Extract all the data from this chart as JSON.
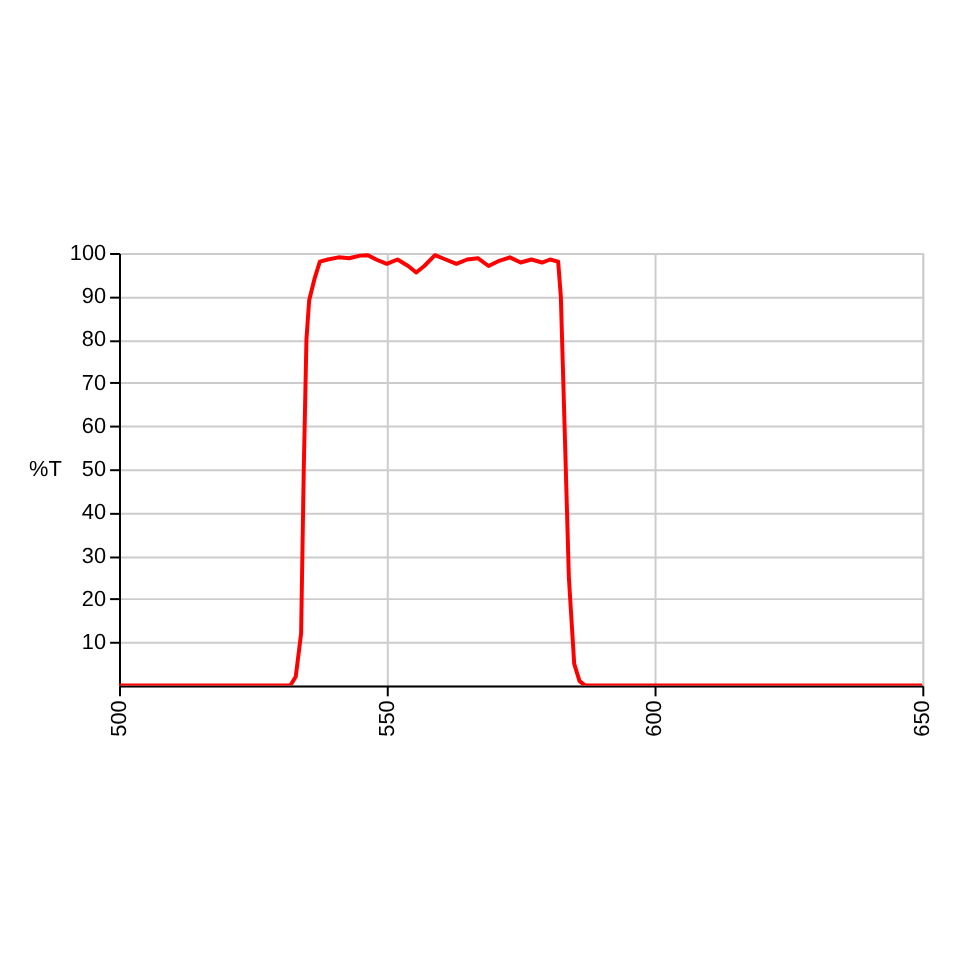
{
  "chart_data": {
    "type": "line",
    "ylabel": "%T",
    "x": [
      500,
      532,
      533,
      534,
      534.5,
      535,
      535.5,
      536.5,
      537.5,
      539,
      541,
      543,
      545,
      546.5,
      548,
      550,
      552,
      554,
      555.5,
      557,
      559,
      561,
      563,
      565,
      567,
      569,
      571,
      573,
      575,
      577,
      579,
      580.5,
      582,
      582.5,
      583.2,
      584,
      585,
      586,
      587,
      590,
      650
    ],
    "series": [
      {
        "color": "#ff0000",
        "values": [
          0,
          0,
          2,
          12,
          50,
          80,
          89,
          94,
          98,
          98.5,
          99,
          98.8,
          99.4,
          99.5,
          98.5,
          97.5,
          98.5,
          97,
          95.5,
          97,
          99.5,
          98.5,
          97.5,
          98.5,
          98.8,
          97,
          98.2,
          99,
          97.8,
          98.5,
          97.8,
          98.5,
          98,
          90,
          60,
          25,
          5,
          1,
          0,
          0,
          0
        ]
      }
    ],
    "xlim": [
      500,
      650
    ],
    "xticks": [
      500,
      550,
      600,
      650
    ],
    "ylim": [
      0,
      100
    ],
    "yticks": [
      10,
      20,
      30,
      40,
      50,
      60,
      70,
      80,
      90,
      100
    ],
    "grid": true,
    "marker": "none",
    "line_style": "solid"
  }
}
